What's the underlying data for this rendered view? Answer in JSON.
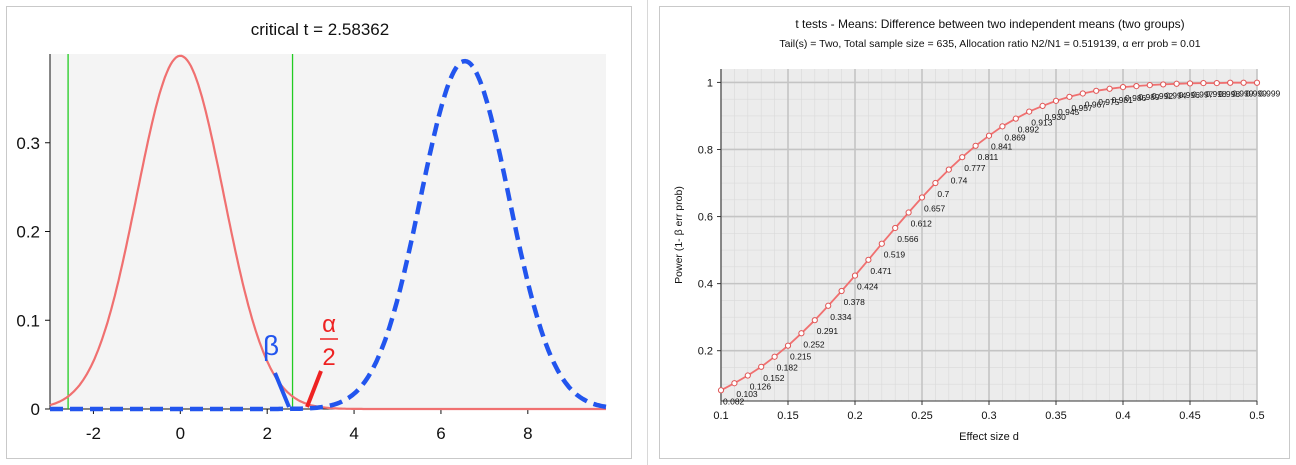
{
  "chart_data": [
    {
      "type": "line",
      "title": "critical  t  = 2.58362",
      "xlim": [
        -3,
        9.8
      ],
      "ylim": [
        0,
        0.4
      ],
      "x_ticks": [
        -2,
        0,
        2,
        4,
        6,
        8
      ],
      "y_ticks": [
        0,
        0.1,
        0.2,
        0.3
      ],
      "critical_values": [
        -2.58362,
        2.58362
      ],
      "series": [
        {
          "distribution": "central t",
          "center": 0,
          "peak": 0.398,
          "sd": 1,
          "style": "solid",
          "color": "#f07070"
        },
        {
          "distribution": "noncentral t",
          "center": 6.55,
          "peak": 0.392,
          "sd": 1.02,
          "style": "dashed",
          "color": "#2255ee"
        }
      ],
      "annotations": {
        "beta": "β",
        "alpha_num": "α",
        "alpha_den": "2"
      },
      "colors": {
        "critical_line": "#22cc22",
        "plot_bg": "#f4f4f4",
        "beta": "#2255ee",
        "alpha": "#ee2222"
      }
    },
    {
      "type": "line",
      "title": "t tests - Means: Difference between two independent means (two groups)",
      "subtitle": "Tail(s) = Two, Total sample size = 635, Allocation ratio N2/N1 = 0.519139, α err prob = 0.01",
      "xlabel": "Effect size d",
      "ylabel": "Power (1- β err prob)",
      "xlim": [
        0.1,
        0.5
      ],
      "ylim": [
        0.05,
        1.04
      ],
      "x_ticks": [
        0.1,
        0.15,
        0.2,
        0.25,
        0.3,
        0.35,
        0.4,
        0.45,
        0.5
      ],
      "x_tick_labels": [
        "0.1",
        "0.15",
        "0.2",
        "0.25",
        "0.3",
        "0.35",
        "0.4",
        "0.45",
        "0.5"
      ],
      "y_ticks": [
        0.2,
        0.4,
        0.6,
        0.8,
        1
      ],
      "y_tick_labels": [
        "0.2",
        "0.4",
        "0.6",
        "0.8",
        "1"
      ],
      "x": [
        0.1,
        0.11,
        0.12,
        0.13,
        0.14,
        0.15,
        0.16,
        0.17,
        0.18,
        0.19,
        0.2,
        0.21,
        0.22,
        0.23,
        0.24,
        0.25,
        0.26,
        0.27,
        0.28,
        0.29,
        0.3,
        0.31,
        0.32,
        0.33,
        0.34,
        0.35,
        0.36,
        0.37,
        0.38,
        0.39,
        0.4,
        0.41,
        0.42,
        0.43,
        0.44,
        0.45,
        0.46,
        0.47,
        0.48,
        0.49,
        0.5
      ],
      "values": [
        0.082,
        0.103,
        0.126,
        0.152,
        0.182,
        0.215,
        0.252,
        0.291,
        0.334,
        0.378,
        0.424,
        0.471,
        0.519,
        0.566,
        0.612,
        0.657,
        0.7,
        0.74,
        0.777,
        0.811,
        0.841,
        0.869,
        0.892,
        0.913,
        0.93,
        0.945,
        0.957,
        0.967,
        0.975,
        0.981,
        0.986,
        0.989,
        0.992,
        0.994,
        0.996,
        0.997,
        0.998,
        0.998,
        0.999,
        0.999,
        0.999
      ],
      "point_labels": [
        "0.082",
        "0.103",
        "0.126",
        "0.152",
        "0.182",
        "0.215",
        "0.252",
        "0.291",
        "0.334",
        "0.378",
        "0.424",
        "0.471",
        "0.519",
        "0.566",
        "0.612",
        "0.657",
        "0.7",
        "0.74",
        "0.777",
        "0.811",
        "0.841",
        "0.869",
        "0.892",
        "0.913",
        "0.930",
        "0.945",
        "0.957",
        "0.967",
        "0.975",
        "0.981",
        "0.986",
        "0.989",
        "0.992",
        "0.994",
        "0.996",
        "0.997",
        "0.998",
        "0.998",
        "0.999",
        "0.999",
        "0.999"
      ],
      "grid": true,
      "colors": {
        "line": "#f07070",
        "plot_bg": "#ececec",
        "major_grid": "#c4c4c4",
        "minor_grid": "#dadada"
      }
    }
  ]
}
